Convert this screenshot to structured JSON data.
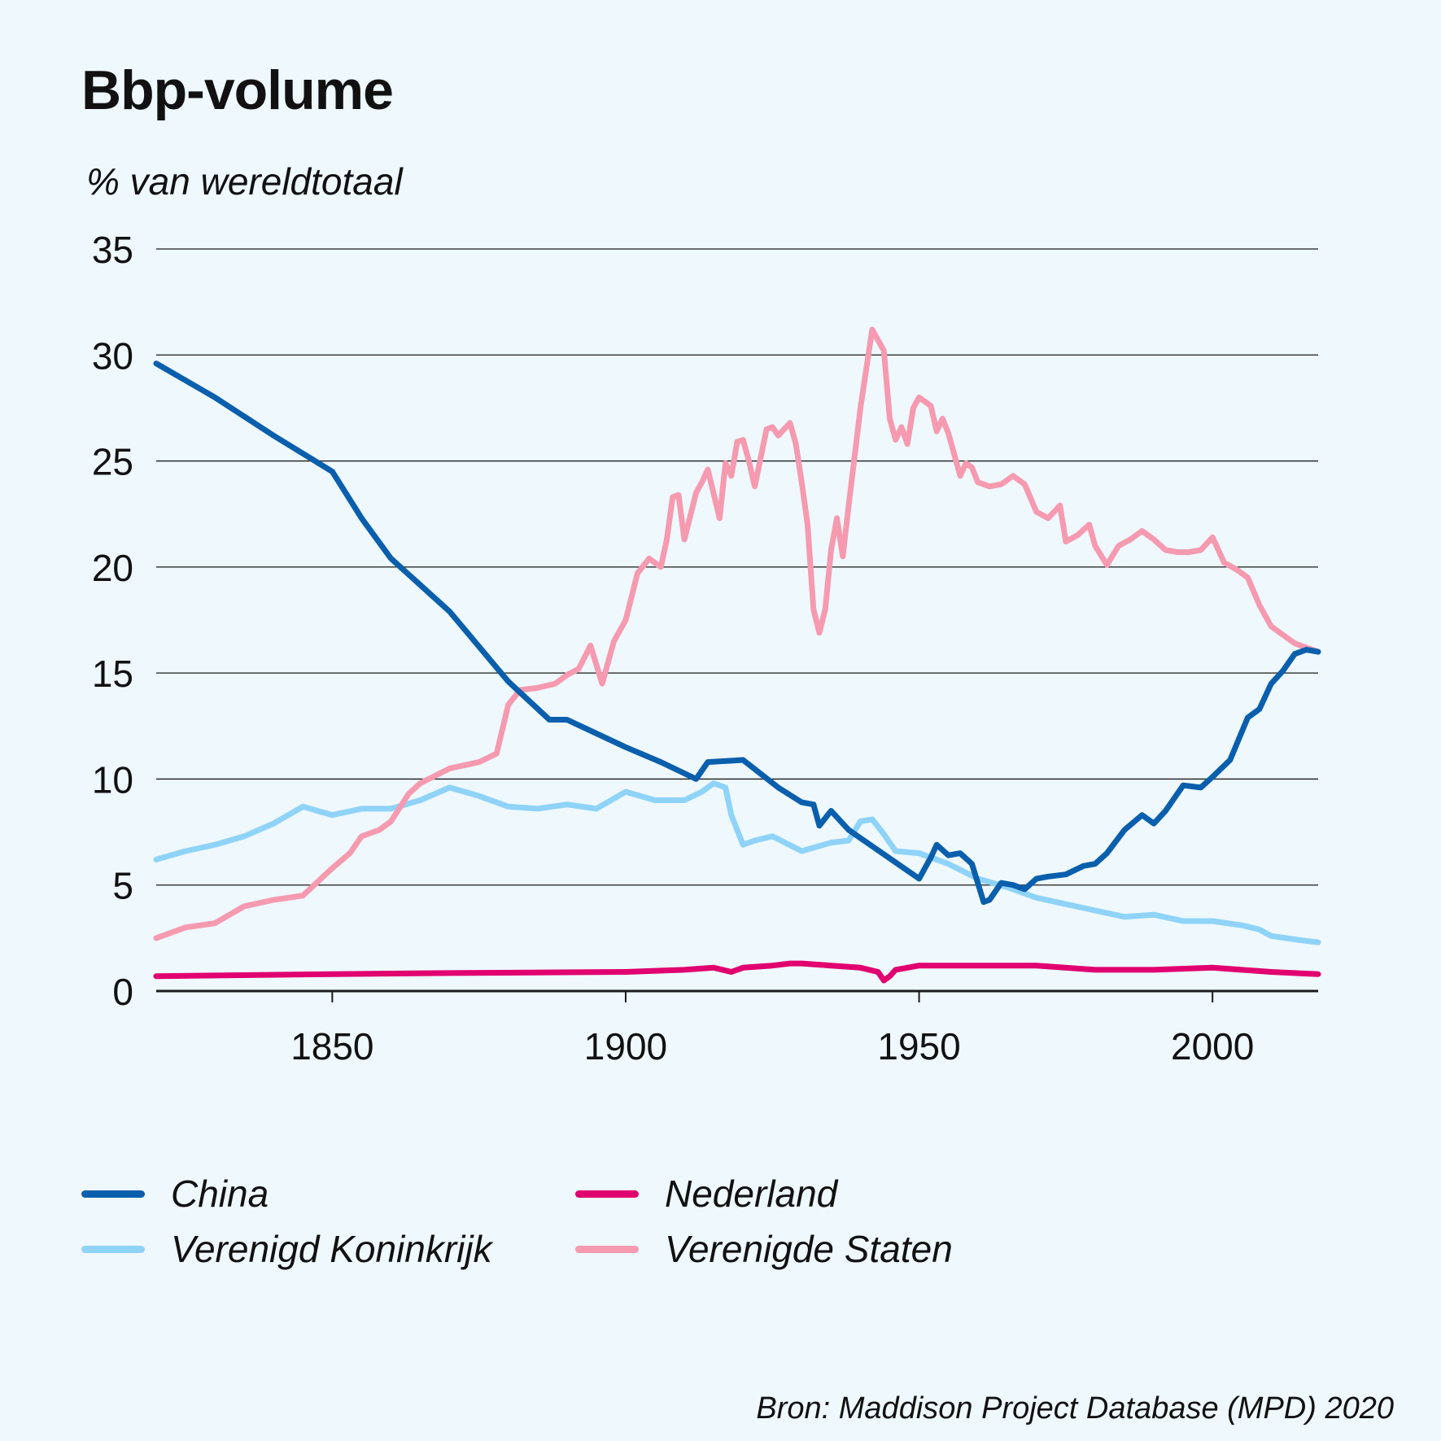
{
  "chart_data": {
    "type": "line",
    "title": "Bbp-volume",
    "ylabel": "% van wereldtotaal",
    "xlabel": "",
    "xlim": [
      1820,
      2018
    ],
    "ylim": [
      0,
      35
    ],
    "yticks": [
      "0",
      "5",
      "10",
      "15",
      "20",
      "25",
      "30",
      "35"
    ],
    "yticks_values": [
      0,
      5,
      10,
      15,
      20,
      25,
      30,
      35
    ],
    "xticks": [
      "1850",
      "1900",
      "1950",
      "2000"
    ],
    "xticks_values": [
      1850,
      1900,
      1950,
      2000
    ],
    "grid": true,
    "legend_position": "bottom",
    "source": "Bron: Maddison Project Database (MPD) 2020",
    "series": [
      {
        "name": "China",
        "color": "#0a5fad",
        "x": [
          1820,
          1830,
          1840,
          1850,
          1855,
          1860,
          1870,
          1880,
          1887,
          1890,
          1900,
          1906,
          1912,
          1914,
          1920,
          1926,
          1930,
          1932,
          1933,
          1935,
          1938,
          1950,
          1952,
          1953,
          1955,
          1957,
          1959,
          1960,
          1961,
          1962,
          1964,
          1966,
          1968,
          1970,
          1972,
          1975,
          1978,
          1980,
          1982,
          1985,
          1988,
          1990,
          1992,
          1995,
          1998,
          2000,
          2003,
          2006,
          2008,
          2010,
          2012,
          2014,
          2016,
          2018
        ],
        "values": [
          29.6,
          28.0,
          26.2,
          24.5,
          22.3,
          20.4,
          17.9,
          14.6,
          12.8,
          12.8,
          11.5,
          10.8,
          10.0,
          10.8,
          10.9,
          9.6,
          8.9,
          8.8,
          7.8,
          8.5,
          7.6,
          5.3,
          6.3,
          6.9,
          6.4,
          6.5,
          6.0,
          5.1,
          4.2,
          4.3,
          5.1,
          5.0,
          4.8,
          5.3,
          5.4,
          5.5,
          5.9,
          6.0,
          6.5,
          7.6,
          8.3,
          7.9,
          8.5,
          9.7,
          9.6,
          10.1,
          10.9,
          12.9,
          13.3,
          14.5,
          15.1,
          15.9,
          16.1,
          16.0
        ]
      },
      {
        "name": "Nederland",
        "color": "#e1006f",
        "x": [
          1820,
          1850,
          1870,
          1900,
          1910,
          1915,
          1918,
          1920,
          1925,
          1928,
          1930,
          1935,
          1940,
          1943,
          1944,
          1945,
          1946,
          1950,
          1960,
          1970,
          1980,
          1990,
          2000,
          2010,
          2018
        ],
        "values": [
          0.7,
          0.8,
          0.85,
          0.9,
          1.0,
          1.1,
          0.9,
          1.1,
          1.2,
          1.3,
          1.3,
          1.2,
          1.1,
          0.9,
          0.5,
          0.7,
          1.0,
          1.2,
          1.2,
          1.2,
          1.0,
          1.0,
          1.1,
          0.9,
          0.8
        ]
      },
      {
        "name": "Verenigd Koninkrijk",
        "color": "#8fd3f8",
        "x": [
          1820,
          1825,
          1830,
          1835,
          1840,
          1845,
          1850,
          1855,
          1860,
          1865,
          1870,
          1875,
          1880,
          1885,
          1890,
          1895,
          1900,
          1905,
          1910,
          1913,
          1915,
          1917,
          1918,
          1920,
          1922,
          1925,
          1930,
          1935,
          1938,
          1940,
          1942,
          1944,
          1946,
          1950,
          1955,
          1960,
          1965,
          1970,
          1975,
          1980,
          1985,
          1990,
          1995,
          2000,
          2005,
          2008,
          2010,
          2015,
          2018
        ],
        "values": [
          6.2,
          6.6,
          6.9,
          7.3,
          7.9,
          8.7,
          8.3,
          8.6,
          8.6,
          9.0,
          9.6,
          9.2,
          8.7,
          8.6,
          8.8,
          8.6,
          9.4,
          9.0,
          9.0,
          9.4,
          9.8,
          9.6,
          8.3,
          6.9,
          7.1,
          7.3,
          6.6,
          7.0,
          7.1,
          8.0,
          8.1,
          7.4,
          6.6,
          6.5,
          6.0,
          5.3,
          4.9,
          4.4,
          4.1,
          3.8,
          3.5,
          3.6,
          3.3,
          3.3,
          3.1,
          2.9,
          2.6,
          2.4,
          2.3
        ]
      },
      {
        "name": "Verenigde Staten",
        "color": "#f69ab0",
        "x": [
          1820,
          1825,
          1830,
          1835,
          1840,
          1845,
          1850,
          1853,
          1855,
          1858,
          1860,
          1863,
          1865,
          1870,
          1875,
          1878,
          1880,
          1882,
          1885,
          1888,
          1890,
          1892,
          1894,
          1896,
          1898,
          1900,
          1902,
          1904,
          1906,
          1907,
          1908,
          1909,
          1910,
          1912,
          1913,
          1914,
          1916,
          1917,
          1918,
          1919,
          1920,
          1921,
          1922,
          1924,
          1925,
          1926,
          1928,
          1929,
          1930,
          1931,
          1932,
          1933,
          1934,
          1935,
          1936,
          1937,
          1938,
          1940,
          1942,
          1944,
          1945,
          1946,
          1947,
          1948,
          1949,
          1950,
          1951,
          1952,
          1953,
          1954,
          1955,
          1957,
          1958,
          1959,
          1960,
          1962,
          1964,
          1966,
          1968,
          1970,
          1972,
          1974,
          1975,
          1977,
          1979,
          1980,
          1982,
          1984,
          1986,
          1988,
          1990,
          1992,
          1994,
          1996,
          1998,
          2000,
          2002,
          2004,
          2006,
          2008,
          2010,
          2012,
          2014,
          2016,
          2018
        ],
        "values": [
          2.5,
          3.0,
          3.2,
          4.0,
          4.3,
          4.5,
          5.8,
          6.5,
          7.3,
          7.6,
          8.0,
          9.3,
          9.8,
          10.5,
          10.8,
          11.2,
          13.5,
          14.2,
          14.3,
          14.5,
          14.9,
          15.2,
          16.3,
          14.5,
          16.5,
          17.5,
          19.7,
          20.4,
          20.0,
          21.3,
          23.3,
          23.4,
          21.3,
          23.5,
          24.0,
          24.6,
          22.3,
          24.9,
          24.3,
          25.9,
          26.0,
          25.0,
          23.8,
          26.5,
          26.6,
          26.2,
          26.8,
          25.8,
          24.0,
          22.0,
          18.0,
          16.9,
          18.0,
          20.8,
          22.3,
          20.5,
          22.9,
          27.5,
          31.2,
          30.2,
          27.0,
          26.0,
          26.6,
          25.8,
          27.5,
          28.0,
          27.8,
          27.6,
          26.4,
          27.0,
          26.3,
          24.3,
          24.9,
          24.7,
          24.0,
          23.8,
          23.9,
          24.3,
          23.9,
          22.6,
          22.3,
          22.9,
          21.2,
          21.5,
          22.0,
          21.0,
          20.1,
          21.0,
          21.3,
          21.7,
          21.3,
          20.8,
          20.7,
          20.7,
          20.8,
          21.4,
          20.2,
          19.9,
          19.5,
          18.2,
          17.2,
          16.8,
          16.4,
          16.2,
          16.0
        ]
      }
    ]
  }
}
